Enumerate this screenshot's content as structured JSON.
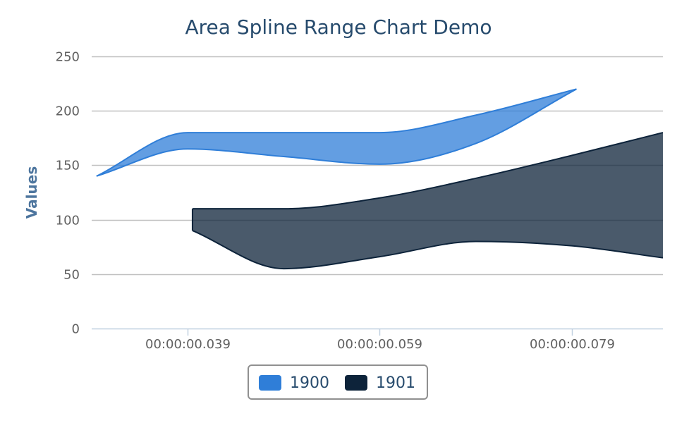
{
  "chart_data": {
    "type": "area",
    "subtype": "areasplinerange",
    "title": "Area Spline Range Chart Demo",
    "xlabel": "",
    "ylabel": "Values",
    "ylim": [
      0,
      250
    ],
    "yticks": [
      0,
      50,
      100,
      150,
      200,
      250
    ],
    "xlim": [
      0.029,
      0.0885
    ],
    "xticks": [
      {
        "value": 0.039,
        "label": "00:00:00.039"
      },
      {
        "value": 0.059,
        "label": "00:00:00.059"
      },
      {
        "value": 0.079,
        "label": "00:00:00.079"
      }
    ],
    "grid": true,
    "legend_position": "bottom-center",
    "series": [
      {
        "name": "1900",
        "color": "#2f7ed8",
        "x": [
          0.0295,
          0.039,
          0.049,
          0.059,
          0.069,
          0.0795
        ],
        "low": [
          140,
          165,
          158,
          151,
          170,
          220
        ],
        "high": [
          140,
          180,
          180,
          180,
          196,
          220
        ]
      },
      {
        "name": "1901",
        "color": "#0d233a",
        "x": [
          0.0395,
          0.049,
          0.059,
          0.069,
          0.079,
          0.0885
        ],
        "low": [
          90,
          55,
          66,
          80,
          76,
          65
        ],
        "high": [
          110,
          110,
          120,
          138,
          159,
          180
        ]
      }
    ]
  }
}
